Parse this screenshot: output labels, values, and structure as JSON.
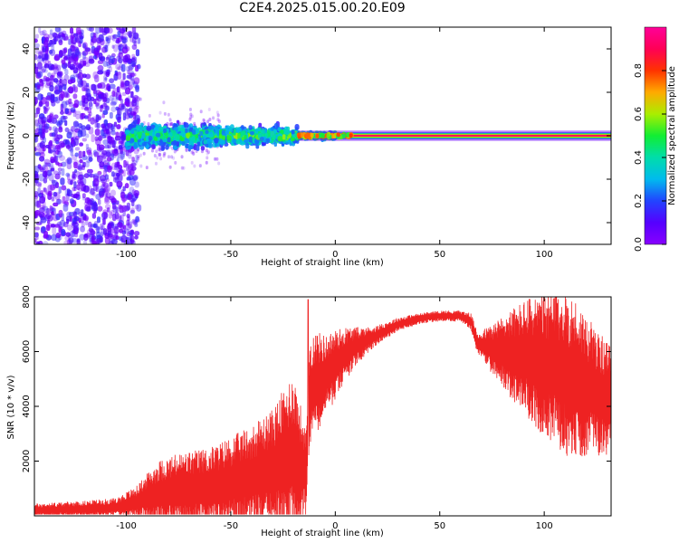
{
  "title": "C2E4.2025.015.00.20.E09",
  "colors": {
    "snr_line": "#ee2222",
    "cmap": [
      "#8800ff",
      "#5500ff",
      "#2244ff",
      "#00bbee",
      "#00ddaa",
      "#11ee33",
      "#aaee00",
      "#ffaa00",
      "#ff3300",
      "#ff0055",
      "#ff0099"
    ]
  },
  "chart_data": [
    {
      "type": "heatmap",
      "title": "C2E4.2025.015.00.20.E09",
      "xlabel": "Height of straight line (km)",
      "ylabel": "Frequency (Hz)",
      "xlim": [
        -144,
        132
      ],
      "ylim": [
        -50,
        50
      ],
      "x_ticks": [
        -100,
        -50,
        0,
        50,
        100
      ],
      "y_ticks": [
        -40,
        -20,
        0,
        20,
        40
      ],
      "colorbar": {
        "label": "Normalized spectral amplitude",
        "range": [
          0.0,
          1.0
        ],
        "ticks": [
          0.0,
          0.2,
          0.4,
          0.6,
          0.8
        ]
      },
      "regions": [
        {
          "x_range": [
            -144,
            -100
          ],
          "freq_spread": [
            -50,
            50
          ],
          "amplitude": 0.15
        },
        {
          "x_range": [
            -100,
            -55
          ],
          "freq_spread": [
            -8,
            8
          ],
          "amplitude_peak": 0.5
        },
        {
          "x_range": [
            -55,
            -18
          ],
          "freq_spread": [
            -6,
            6
          ],
          "amplitude_peak": 0.55
        },
        {
          "x_range": [
            -18,
            0
          ],
          "freq_spread": [
            -2,
            2
          ],
          "amplitude_peak": 0.75
        },
        {
          "x_range": [
            0,
            132
          ],
          "freq_spread": [
            -2,
            2
          ],
          "amplitude_peak": 1.0
        }
      ],
      "grid": false
    },
    {
      "type": "line",
      "xlabel": "Height of straight line (km)",
      "ylabel": "SNR (10 * v/v)",
      "xlim": [
        -144,
        132
      ],
      "ylim": [
        0,
        8000
      ],
      "x_ticks": [
        -100,
        -50,
        0,
        50,
        100
      ],
      "y_ticks": [
        2000,
        4000,
        6000,
        8000
      ],
      "envelope": {
        "x": [
          -144,
          -120,
          -105,
          -95,
          -85,
          -75,
          -60,
          -50,
          -40,
          -30,
          -20,
          -14,
          -12,
          -10,
          -5,
          0,
          5,
          10,
          15,
          20,
          25,
          30,
          40,
          50,
          60,
          65,
          68,
          75,
          85,
          95,
          100,
          105,
          110,
          115,
          120,
          125,
          132
        ],
        "mean": [
          200,
          250,
          300,
          500,
          800,
          900,
          1000,
          1200,
          1400,
          1700,
          2300,
          1500,
          4500,
          4800,
          5100,
          5500,
          5900,
          6200,
          6400,
          6600,
          6800,
          7000,
          7200,
          7300,
          7300,
          7100,
          6300,
          6100,
          5900,
          5700,
          5500,
          5400,
          5200,
          5000,
          4800,
          4500,
          4200
        ],
        "spread": [
          250,
          300,
          350,
          600,
          1200,
          1400,
          1500,
          1700,
          1900,
          2200,
          3000,
          1600,
          2200,
          2000,
          1500,
          1300,
          1000,
          700,
          500,
          350,
          300,
          250,
          200,
          200,
          200,
          300,
          400,
          900,
          1700,
          2400,
          2600,
          2800,
          3000,
          2900,
          2600,
          2300,
          2000
        ]
      },
      "peak": {
        "x": -13,
        "y": 7900
      },
      "grid": false
    }
  ]
}
